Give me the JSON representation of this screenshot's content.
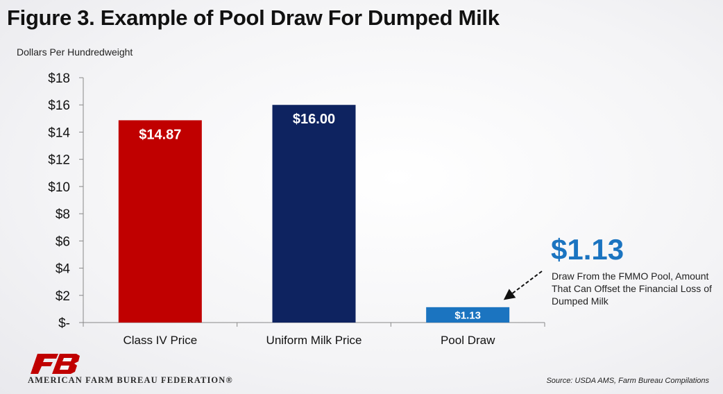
{
  "header": {
    "title": "Figure 3. Example of Pool Draw For Dumped Milk"
  },
  "chart_data": {
    "type": "bar",
    "ylabel": "Dollars Per Hundredweight",
    "ylim": [
      0,
      18
    ],
    "yticks": [
      0,
      2,
      4,
      6,
      8,
      10,
      12,
      14,
      16,
      18
    ],
    "ytick_labels": [
      "$-",
      "$2",
      "$4",
      "$6",
      "$8",
      "$10",
      "$12",
      "$14",
      "$16",
      "$18"
    ],
    "categories": [
      "Class IV Price",
      "Uniform Milk Price",
      "Pool Draw"
    ],
    "values": [
      14.87,
      16.0,
      1.13
    ],
    "data_labels": [
      "$14.87",
      "$16.00",
      "$1.13"
    ],
    "colors": [
      "#c00000",
      "#0e2360",
      "#1b74c0"
    ],
    "grid": false,
    "legend": "none"
  },
  "callout": {
    "value": "$1.13",
    "text": "Draw From the FMMO Pool, Amount That Can Offset the Financial Loss of Dumped Milk",
    "color": "#1b74c0"
  },
  "logo": {
    "icon": "fb-logo-icon",
    "color": "#c00000"
  },
  "footer": {
    "organization": "AMERICAN FARM BUREAU FEDERATION®",
    "source": "Source: USDA AMS, Farm Bureau Compilations"
  }
}
